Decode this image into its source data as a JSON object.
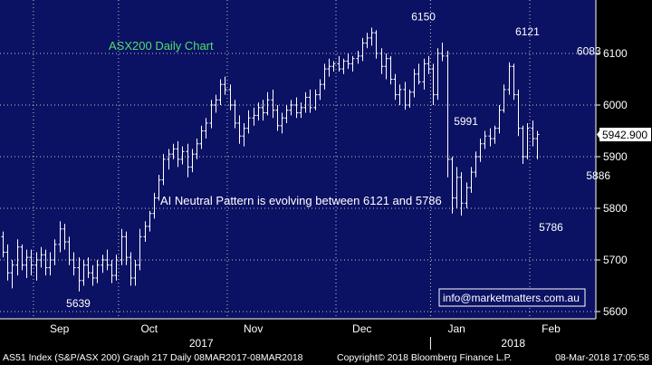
{
  "colors": {
    "background": "#000000",
    "plot_background": "#0b1163",
    "bars": "#ffffff",
    "grid": "#c8c8c8",
    "title": "#4ee06a",
    "text": "#ffffff",
    "price_box_bg": "#ffffff",
    "price_box_text": "#000000"
  },
  "chart_data": {
    "type": "ohlc",
    "title": "ASX200 Daily Chart",
    "note": "AI Neutral Pattern is evolving between 6121 and 5786",
    "watermark": "info@marketmatters.com.au",
    "last_price_label": "5942.900",
    "last_price": 5942.9,
    "ylim": [
      5595,
      6200
    ],
    "y_ticks": [
      5600,
      5700,
      5800,
      5900,
      6000,
      6100
    ],
    "y_tick_labels": [
      "5600",
      "5700",
      "5800",
      "5900",
      "6000",
      "6100"
    ],
    "grid": true,
    "x_tick_labels": [
      {
        "label": "Sep",
        "x": 12
      },
      {
        "label": "Oct",
        "x": 31
      },
      {
        "label": "Nov",
        "x": 53
      },
      {
        "label": "Dec",
        "x": 76
      },
      {
        "label": "Jan",
        "x": 96
      },
      {
        "label": "Feb",
        "x": 116
      }
    ],
    "x_year_labels": [
      {
        "label": "2017",
        "x": 42
      },
      {
        "label": "2018",
        "x": 108
      }
    ],
    "annotations": [
      {
        "label": "5639",
        "x": 16,
        "y": 5639,
        "position": "below"
      },
      {
        "label": "6150",
        "x": 89,
        "y": 6150,
        "position": "above"
      },
      {
        "label": "5991",
        "x": 98,
        "y": 5991,
        "position": "below"
      },
      {
        "label": "6121",
        "x": 111,
        "y": 6121,
        "position": "above"
      },
      {
        "label": "5786",
        "x": 116,
        "y": 5786,
        "position": "below"
      },
      {
        "label": "6083",
        "x": 124,
        "y": 6083,
        "position": "above"
      },
      {
        "label": "5886",
        "x": 126,
        "y": 5886,
        "position": "below"
      }
    ],
    "ohlc": [
      [
        5745,
        5755,
        5705,
        5715
      ],
      [
        5715,
        5730,
        5660,
        5675
      ],
      [
        5675,
        5700,
        5645,
        5690
      ],
      [
        5690,
        5740,
        5670,
        5725
      ],
      [
        5725,
        5730,
        5680,
        5690
      ],
      [
        5690,
        5720,
        5665,
        5705
      ],
      [
        5705,
        5720,
        5670,
        5690
      ],
      [
        5690,
        5715,
        5660,
        5700
      ],
      [
        5700,
        5725,
        5685,
        5710
      ],
      [
        5710,
        5720,
        5670,
        5685
      ],
      [
        5685,
        5715,
        5670,
        5700
      ],
      [
        5700,
        5740,
        5690,
        5730
      ],
      [
        5730,
        5775,
        5715,
        5760
      ],
      [
        5760,
        5770,
        5720,
        5735
      ],
      [
        5735,
        5745,
        5690,
        5700
      ],
      [
        5700,
        5715,
        5670,
        5685
      ],
      [
        5685,
        5705,
        5639,
        5660
      ],
      [
        5660,
        5700,
        5650,
        5690
      ],
      [
        5690,
        5705,
        5665,
        5675
      ],
      [
        5675,
        5690,
        5650,
        5665
      ],
      [
        5665,
        5700,
        5655,
        5690
      ],
      [
        5690,
        5710,
        5675,
        5700
      ],
      [
        5700,
        5720,
        5680,
        5690
      ],
      [
        5690,
        5700,
        5655,
        5670
      ],
      [
        5670,
        5710,
        5660,
        5700
      ],
      [
        5700,
        5760,
        5690,
        5745
      ],
      [
        5745,
        5755,
        5690,
        5705
      ],
      [
        5705,
        5715,
        5650,
        5665
      ],
      [
        5665,
        5700,
        5650,
        5690
      ],
      [
        5690,
        5760,
        5680,
        5745
      ],
      [
        5745,
        5775,
        5735,
        5765
      ],
      [
        5765,
        5795,
        5755,
        5790
      ],
      [
        5790,
        5830,
        5780,
        5820
      ],
      [
        5820,
        5865,
        5815,
        5855
      ],
      [
        5855,
        5905,
        5845,
        5895
      ],
      [
        5895,
        5915,
        5875,
        5905
      ],
      [
        5905,
        5925,
        5895,
        5915
      ],
      [
        5915,
        5930,
        5880,
        5895
      ],
      [
        5895,
        5920,
        5885,
        5910
      ],
      [
        5910,
        5925,
        5860,
        5880
      ],
      [
        5880,
        5915,
        5870,
        5905
      ],
      [
        5905,
        5935,
        5895,
        5925
      ],
      [
        5925,
        5960,
        5915,
        5950
      ],
      [
        5950,
        5975,
        5935,
        5965
      ],
      [
        5965,
        6010,
        5955,
        6000
      ],
      [
        6000,
        6020,
        5985,
        6010
      ],
      [
        6010,
        6050,
        6000,
        6040
      ],
      [
        6040,
        6055,
        6020,
        6030
      ],
      [
        6030,
        6040,
        5990,
        6000
      ],
      [
        6000,
        6010,
        5955,
        5965
      ],
      [
        5965,
        5980,
        5925,
        5940
      ],
      [
        5940,
        5965,
        5920,
        5955
      ],
      [
        5955,
        5990,
        5945,
        5975
      ],
      [
        5975,
        5995,
        5960,
        5980
      ],
      [
        5980,
        6005,
        5970,
        5995
      ],
      [
        5995,
        6010,
        5970,
        5985
      ],
      [
        5985,
        6025,
        5980,
        6010
      ],
      [
        6010,
        6030,
        5975,
        5990
      ],
      [
        5990,
        6000,
        5950,
        5960
      ],
      [
        5960,
        5985,
        5945,
        5975
      ],
      [
        5975,
        6000,
        5965,
        5990
      ],
      [
        5990,
        6010,
        5980,
        6000
      ],
      [
        6000,
        6015,
        5975,
        5985
      ],
      [
        5985,
        6005,
        5975,
        5995
      ],
      [
        5995,
        6025,
        5985,
        6015
      ],
      [
        6015,
        6030,
        5985,
        5995
      ],
      [
        5995,
        6030,
        5990,
        6020
      ],
      [
        6020,
        6050,
        6010,
        6040
      ],
      [
        6040,
        6080,
        6030,
        6070
      ],
      [
        6070,
        6090,
        6055,
        6075
      ],
      [
        6075,
        6085,
        6065,
        6080
      ],
      [
        6080,
        6095,
        6065,
        6070
      ],
      [
        6070,
        6090,
        6060,
        6085
      ],
      [
        6085,
        6100,
        6070,
        6080
      ],
      [
        6080,
        6095,
        6065,
        6090
      ],
      [
        6090,
        6105,
        6080,
        6095
      ],
      [
        6095,
        6130,
        6085,
        6120
      ],
      [
        6120,
        6140,
        6110,
        6130
      ],
      [
        6130,
        6150,
        6115,
        6140
      ],
      [
        6140,
        6145,
        6090,
        6100
      ],
      [
        6100,
        6110,
        6060,
        6075
      ],
      [
        6075,
        6100,
        6050,
        6090
      ],
      [
        6090,
        6095,
        6040,
        6050
      ],
      [
        6050,
        6060,
        6010,
        6020
      ],
      [
        6020,
        6040,
        6000,
        6030
      ],
      [
        6030,
        6045,
        5991,
        6000
      ],
      [
        6000,
        6030,
        5995,
        6025
      ],
      [
        6025,
        6070,
        6015,
        6060
      ],
      [
        6060,
        6080,
        6040,
        6045
      ],
      [
        6045,
        6090,
        6030,
        6080
      ],
      [
        6080,
        6095,
        6060,
        6070
      ],
      [
        6070,
        6080,
        6000,
        6020
      ],
      [
        6020,
        6110,
        6010,
        6100
      ],
      [
        6100,
        6121,
        6085,
        6095
      ],
      [
        6095,
        6105,
        5860,
        5895
      ],
      [
        5895,
        5900,
        5790,
        5820
      ],
      [
        5820,
        5880,
        5800,
        5860
      ],
      [
        5860,
        5870,
        5786,
        5810
      ],
      [
        5810,
        5850,
        5800,
        5840
      ],
      [
        5840,
        5880,
        5830,
        5870
      ],
      [
        5870,
        5910,
        5860,
        5900
      ],
      [
        5900,
        5935,
        5890,
        5925
      ],
      [
        5925,
        5950,
        5915,
        5940
      ],
      [
        5940,
        5955,
        5920,
        5935
      ],
      [
        5935,
        5960,
        5925,
        5955
      ],
      [
        5955,
        6000,
        5945,
        5990
      ],
      [
        5990,
        6040,
        5985,
        6030
      ],
      [
        6030,
        6083,
        6020,
        6075
      ],
      [
        6075,
        6080,
        6010,
        6020
      ],
      [
        6020,
        6030,
        5940,
        5955
      ],
      [
        5955,
        5960,
        5886,
        5900
      ],
      [
        5900,
        5965,
        5895,
        5955
      ],
      [
        5955,
        5970,
        5920,
        5935
      ],
      [
        5935,
        5950,
        5895,
        5943
      ]
    ]
  },
  "footer": {
    "left": "AS51 Index (S&P/ASX 200) Graph 217  Daily 08MAR2017-08MAR2018",
    "copyright": "Copyright© 2018 Bloomberg Finance L.P.",
    "timestamp": "08-Mar-2018 17:05:58"
  }
}
